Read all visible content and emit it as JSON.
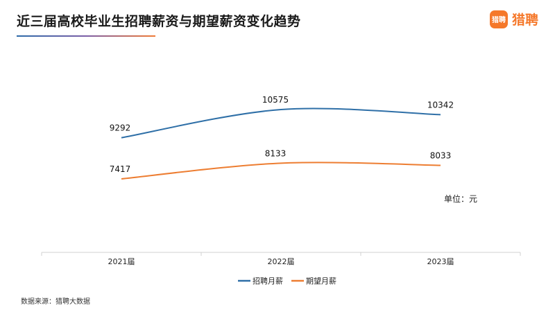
{
  "header": {
    "title": "近三届高校毕业生招聘薪资与期望薪资变化趋势",
    "brand_icon_text": "猎聘",
    "brand_text": "猎聘"
  },
  "unit_label": "单位：元",
  "source": "数据来源：猎聘大数据",
  "chart_data": {
    "type": "line",
    "title": "近三届高校毕业生招聘薪资与期望薪资变化趋势",
    "categories": [
      "2021届",
      "2022届",
      "2023届"
    ],
    "series": [
      {
        "name": "招聘月薪",
        "values": [
          9292,
          10575,
          10342
        ],
        "color": "#2e6fa7"
      },
      {
        "name": "期望月薪",
        "values": [
          7417,
          8133,
          8033
        ],
        "color": "#ed7d31"
      }
    ],
    "grid": false,
    "legend": "bottom",
    "smooth": true
  }
}
